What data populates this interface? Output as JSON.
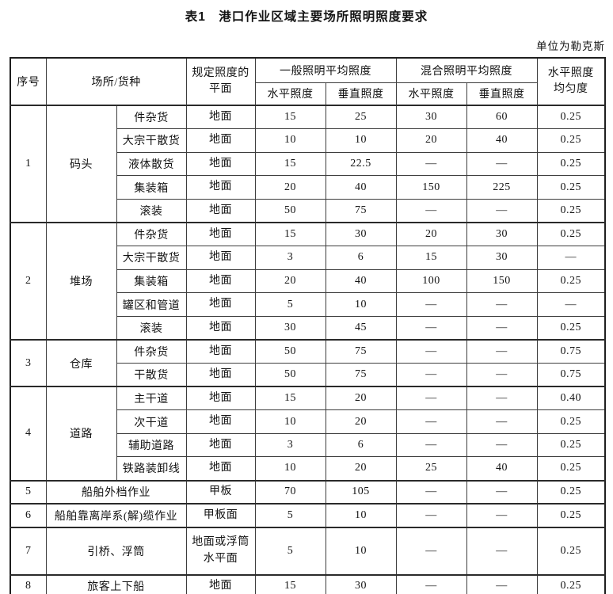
{
  "title": "表1　港口作业区域主要场所照明照度要求",
  "unit_note": "单位为勒克斯",
  "header": {
    "seq": "序号",
    "place": "场所/货种",
    "plane": "规定照度的\n平面",
    "general_group": "一般照明平均照度",
    "mixed_group": "混合照明平均照度",
    "uniformity": "水平照度\n均匀度",
    "sub": [
      "水平照度",
      "垂直照度",
      "水平照度",
      "垂直照度"
    ]
  },
  "groups": [
    {
      "seq": "1",
      "place": "码头",
      "rows": [
        {
          "type": "件杂货",
          "plane": "地面",
          "gh": "15",
          "gv": "25",
          "mh": "30",
          "mv": "60",
          "u": "0.25"
        },
        {
          "type": "大宗干散货",
          "plane": "地面",
          "gh": "10",
          "gv": "10",
          "mh": "20",
          "mv": "40",
          "u": "0.25"
        },
        {
          "type": "液体散货",
          "plane": "地面",
          "gh": "15",
          "gv": "22.5",
          "mh": "—",
          "mv": "—",
          "u": "0.25"
        },
        {
          "type": "集装箱",
          "plane": "地面",
          "gh": "20",
          "gv": "40",
          "mh": "150",
          "mv": "225",
          "u": "0.25"
        },
        {
          "type": "滚装",
          "plane": "地面",
          "gh": "50",
          "gv": "75",
          "mh": "—",
          "mv": "—",
          "u": "0.25"
        }
      ]
    },
    {
      "seq": "2",
      "place": "堆场",
      "rows": [
        {
          "type": "件杂货",
          "plane": "地面",
          "gh": "15",
          "gv": "30",
          "mh": "20",
          "mv": "30",
          "u": "0.25"
        },
        {
          "type": "大宗干散货",
          "plane": "地面",
          "gh": "3",
          "gv": "6",
          "mh": "15",
          "mv": "30",
          "u": "—"
        },
        {
          "type": "集装箱",
          "plane": "地面",
          "gh": "20",
          "gv": "40",
          "mh": "100",
          "mv": "150",
          "u": "0.25"
        },
        {
          "type": "罐区和管道",
          "plane": "地面",
          "gh": "5",
          "gv": "10",
          "mh": "—",
          "mv": "—",
          "u": "—"
        },
        {
          "type": "滚装",
          "plane": "地面",
          "gh": "30",
          "gv": "45",
          "mh": "—",
          "mv": "—",
          "u": "0.25"
        }
      ]
    },
    {
      "seq": "3",
      "place": "仓库",
      "rows": [
        {
          "type": "件杂货",
          "plane": "地面",
          "gh": "50",
          "gv": "75",
          "mh": "—",
          "mv": "—",
          "u": "0.75"
        },
        {
          "type": "干散货",
          "plane": "地面",
          "gh": "50",
          "gv": "75",
          "mh": "—",
          "mv": "—",
          "u": "0.75"
        }
      ]
    },
    {
      "seq": "4",
      "place": "道路",
      "rows": [
        {
          "type": "主干道",
          "plane": "地面",
          "gh": "15",
          "gv": "20",
          "mh": "—",
          "mv": "—",
          "u": "0.40"
        },
        {
          "type": "次干道",
          "plane": "地面",
          "gh": "10",
          "gv": "20",
          "mh": "—",
          "mv": "—",
          "u": "0.25"
        },
        {
          "type": "辅助道路",
          "plane": "地面",
          "gh": "3",
          "gv": "6",
          "mh": "—",
          "mv": "—",
          "u": "0.25"
        },
        {
          "type": "铁路装卸线",
          "plane": "地面",
          "gh": "10",
          "gv": "20",
          "mh": "25",
          "mv": "40",
          "u": "0.25"
        }
      ]
    },
    {
      "seq": "5",
      "place": "船舶外档作业",
      "span_place": true,
      "rows": [
        {
          "plane": "甲板",
          "gh": "70",
          "gv": "105",
          "mh": "—",
          "mv": "—",
          "u": "0.25"
        }
      ]
    },
    {
      "seq": "6",
      "place": "船舶靠离岸系(解)缆作业",
      "span_place": true,
      "rows": [
        {
          "plane": "甲板面",
          "gh": "5",
          "gv": "10",
          "mh": "—",
          "mv": "—",
          "u": "0.25"
        }
      ]
    },
    {
      "seq": "7",
      "place": "引桥、浮筒",
      "span_place": true,
      "tall": true,
      "rows": [
        {
          "plane": "地面或浮筒\n水平面",
          "gh": "5",
          "gv": "10",
          "mh": "—",
          "mv": "—",
          "u": "0.25"
        }
      ]
    },
    {
      "seq": "8",
      "place": "旅客上下船",
      "span_place": true,
      "rows": [
        {
          "plane": "地面",
          "gh": "15",
          "gv": "30",
          "mh": "—",
          "mv": "—",
          "u": "0.25"
        }
      ]
    }
  ]
}
